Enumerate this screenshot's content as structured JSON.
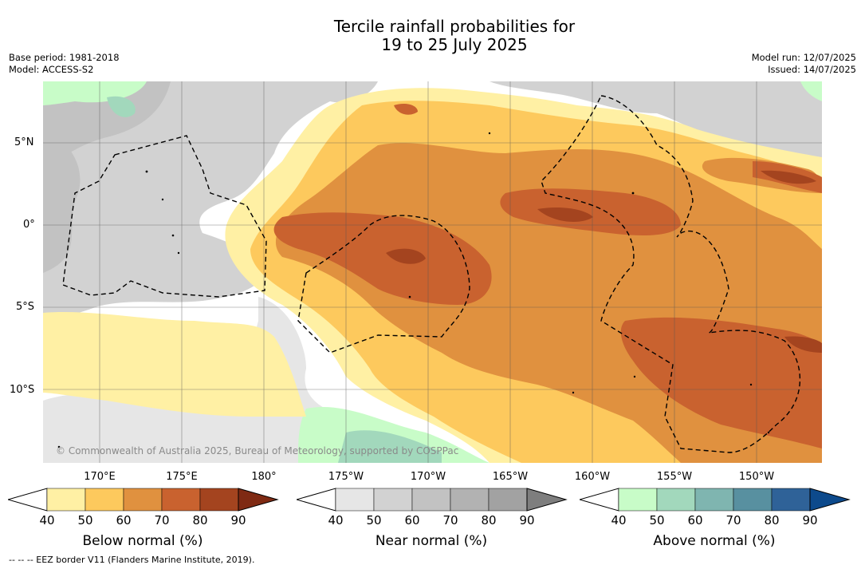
{
  "title_line1": "Tercile rainfall probabilities for",
  "title_line2": "19 to 25 July 2025",
  "meta_left": {
    "base_period": "Base period: 1981-2018",
    "model": "Model: ACCESS-S2"
  },
  "meta_right": {
    "model_run": "Model run: 12/07/2025",
    "issued": "Issued: 14/07/2025"
  },
  "lat_labels": [
    "5°N",
    "0°",
    "5°S",
    "10°S"
  ],
  "lon_labels": [
    "170°E",
    "175°E",
    "180°",
    "175°W",
    "170°W",
    "165°W",
    "160°W",
    "155°W",
    "150°W"
  ],
  "copyright": "© Commonwealth of Australia 2025, Bureau of Meteorology, supported by COSPPac",
  "colorbars": [
    {
      "title": "Below normal (%)",
      "ticks": [
        "40",
        "50",
        "60",
        "70",
        "80",
        "90"
      ],
      "colors": [
        "#ffffff",
        "#fff0a4",
        "#fdc95d",
        "#e0913f",
        "#c9622f",
        "#a4441f",
        "#7f2a13"
      ]
    },
    {
      "title": "Near normal (%)",
      "ticks": [
        "40",
        "50",
        "60",
        "70",
        "80",
        "90"
      ],
      "colors": [
        "#ffffff",
        "#e6e6e6",
        "#d2d2d2",
        "#c2c2c2",
        "#b2b2b2",
        "#a2a2a2",
        "#7e7e7e"
      ]
    },
    {
      "title": "Above normal (%)",
      "ticks": [
        "40",
        "50",
        "60",
        "70",
        "80",
        "90"
      ],
      "colors": [
        "#ffffff",
        "#c8fcc8",
        "#a2d8bc",
        "#7fb5b0",
        "#5890a0",
        "#2f6298",
        "#0d4a8c"
      ]
    }
  ],
  "footnote": "--  --  -- EEZ border V11 (Flanders Marine Institute, 2019)."
}
